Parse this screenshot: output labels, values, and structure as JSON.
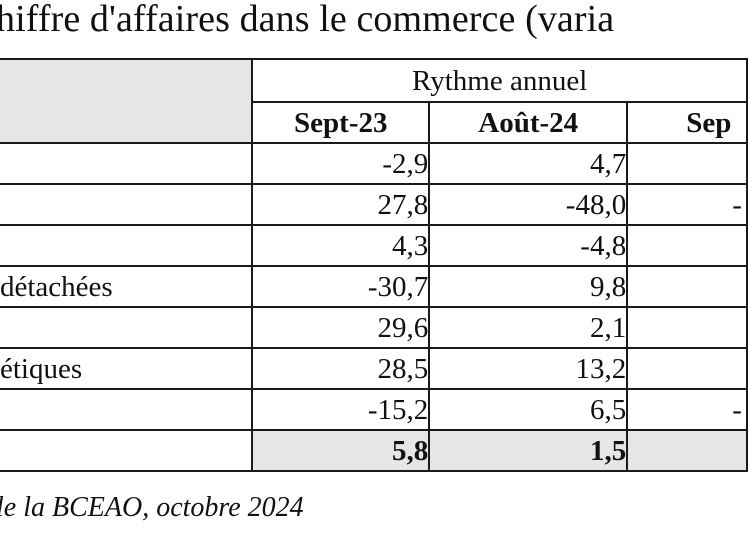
{
  "title": "hiffre d'affaires dans le commerce (varia",
  "table": {
    "group_header": "Rythme annuel",
    "columns": [
      "Sept-23",
      "Août-24",
      "Sep"
    ],
    "rows": [
      {
        "label": "",
        "values": [
          "-2,9",
          "4,7",
          ""
        ]
      },
      {
        "label": "",
        "values": [
          "27,8",
          "-48,0",
          "-"
        ]
      },
      {
        "label": "",
        "values": [
          "4,3",
          "-4,8",
          ""
        ]
      },
      {
        "label": " détachées",
        "values": [
          "-30,7",
          "9,8",
          ""
        ]
      },
      {
        "label": "",
        "values": [
          "29,6",
          "2,1",
          ""
        ]
      },
      {
        "label": "étiques",
        "values": [
          "28,5",
          "13,2",
          ""
        ]
      },
      {
        "label": "",
        "values": [
          "-15,2",
          "6,5",
          "-"
        ]
      }
    ],
    "total": {
      "label": "",
      "values": [
        "5,8",
        "1,5",
        ""
      ]
    }
  },
  "source": "le la BCEAO, octobre 2024"
}
